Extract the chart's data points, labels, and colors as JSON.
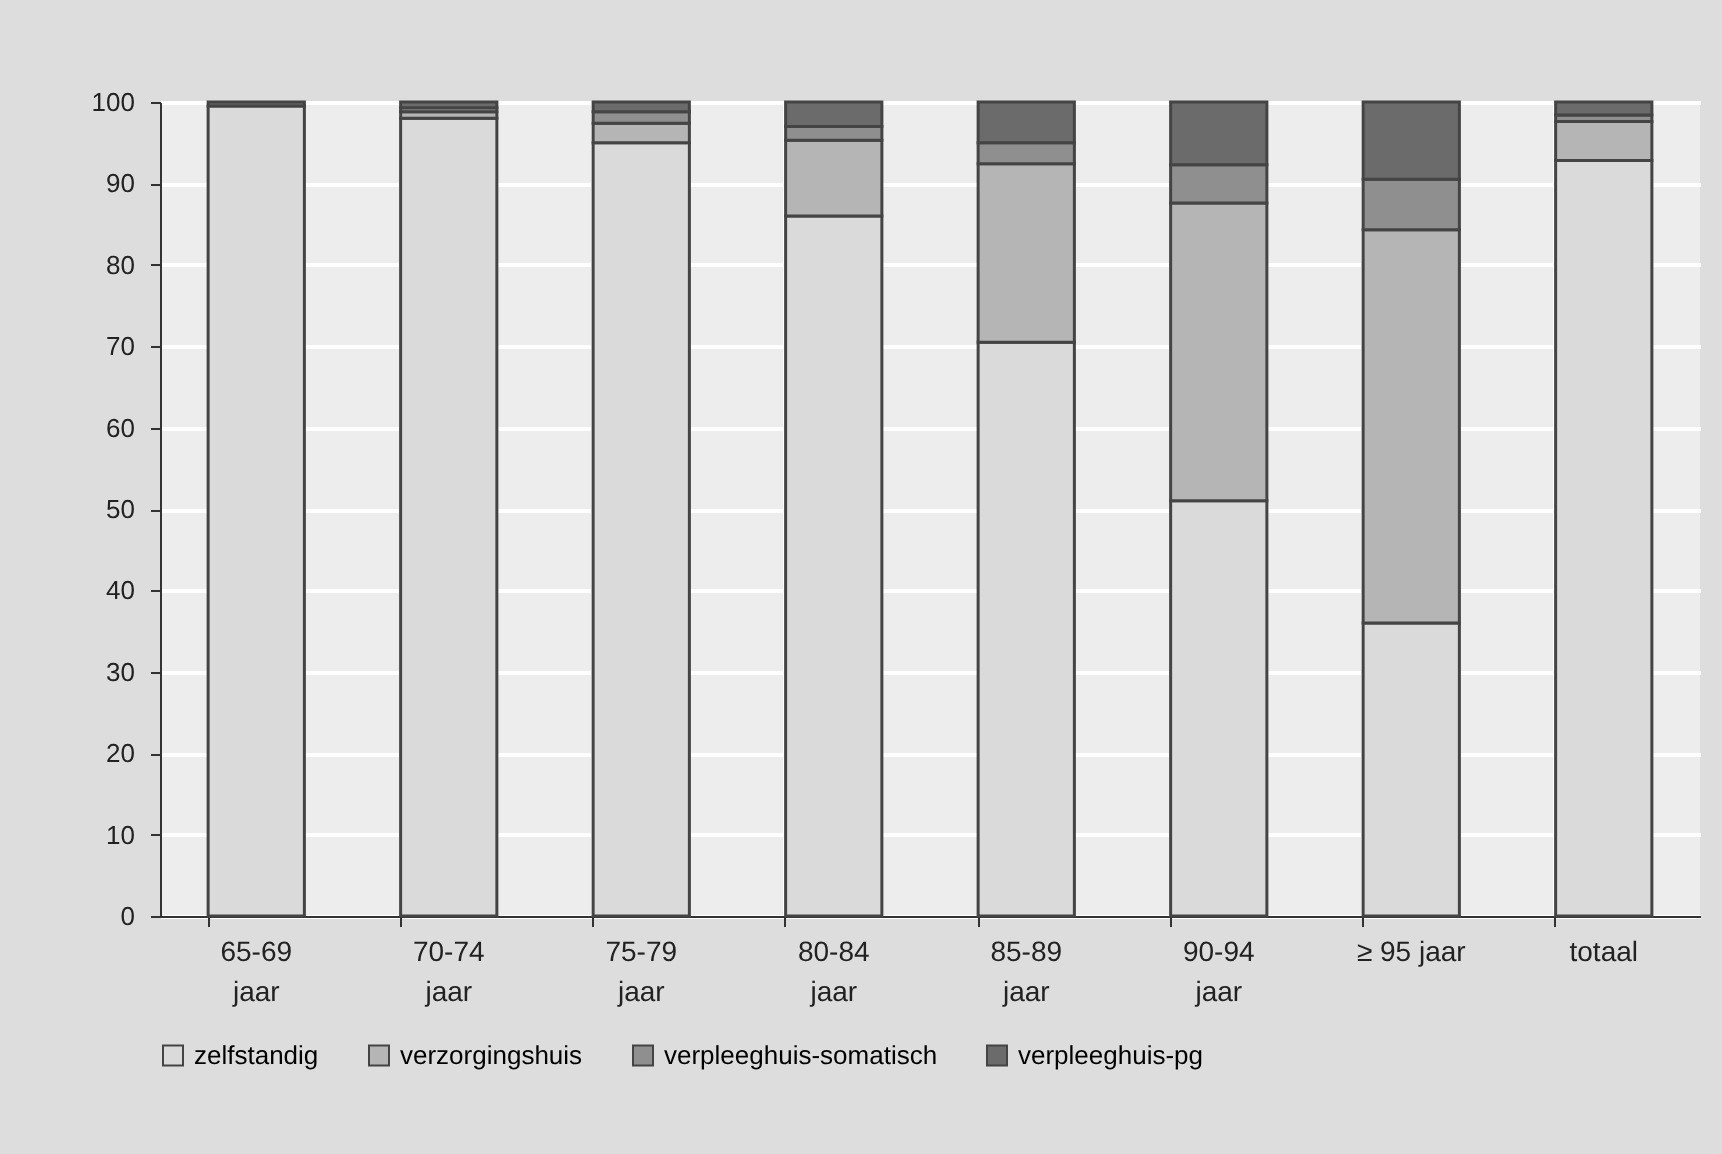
{
  "chart_data": {
    "type": "bar",
    "stacked": true,
    "categories": [
      "65-69 jaar",
      "70-74 jaar",
      "75-79 jaar",
      "80-84 jaar",
      "85-89 jaar",
      "90-94 jaar",
      "≥ 95 jaar",
      "totaal"
    ],
    "series": [
      {
        "name": "zelfstandig",
        "color": "#dadada",
        "values": [
          99.5,
          98,
          95,
          86,
          70.5,
          51,
          36,
          92.8
        ]
      },
      {
        "name": "verzorgingshuis",
        "color": "#b5b5b5",
        "values": [
          null,
          0.8,
          2.4,
          9.3,
          21.9,
          36.6,
          48.3,
          4.8
        ]
      },
      {
        "name": "verpleeghuis-somatisch",
        "color": "#8f8f8f",
        "values": [
          null,
          0.5,
          1.4,
          1.7,
          2.6,
          4.7,
          6.2,
          0.8
        ]
      },
      {
        "name": "verpleeghuis-pg",
        "color": "#6b6b6b",
        "values": [
          0.5,
          0.7,
          1.2,
          3,
          5,
          7.7,
          9.5,
          1.6
        ]
      }
    ],
    "ylim": [
      0,
      100
    ],
    "yticks": [
      0,
      10,
      20,
      30,
      40,
      50,
      60,
      70,
      80,
      90,
      100
    ],
    "grid": true,
    "legend": "bottom"
  }
}
